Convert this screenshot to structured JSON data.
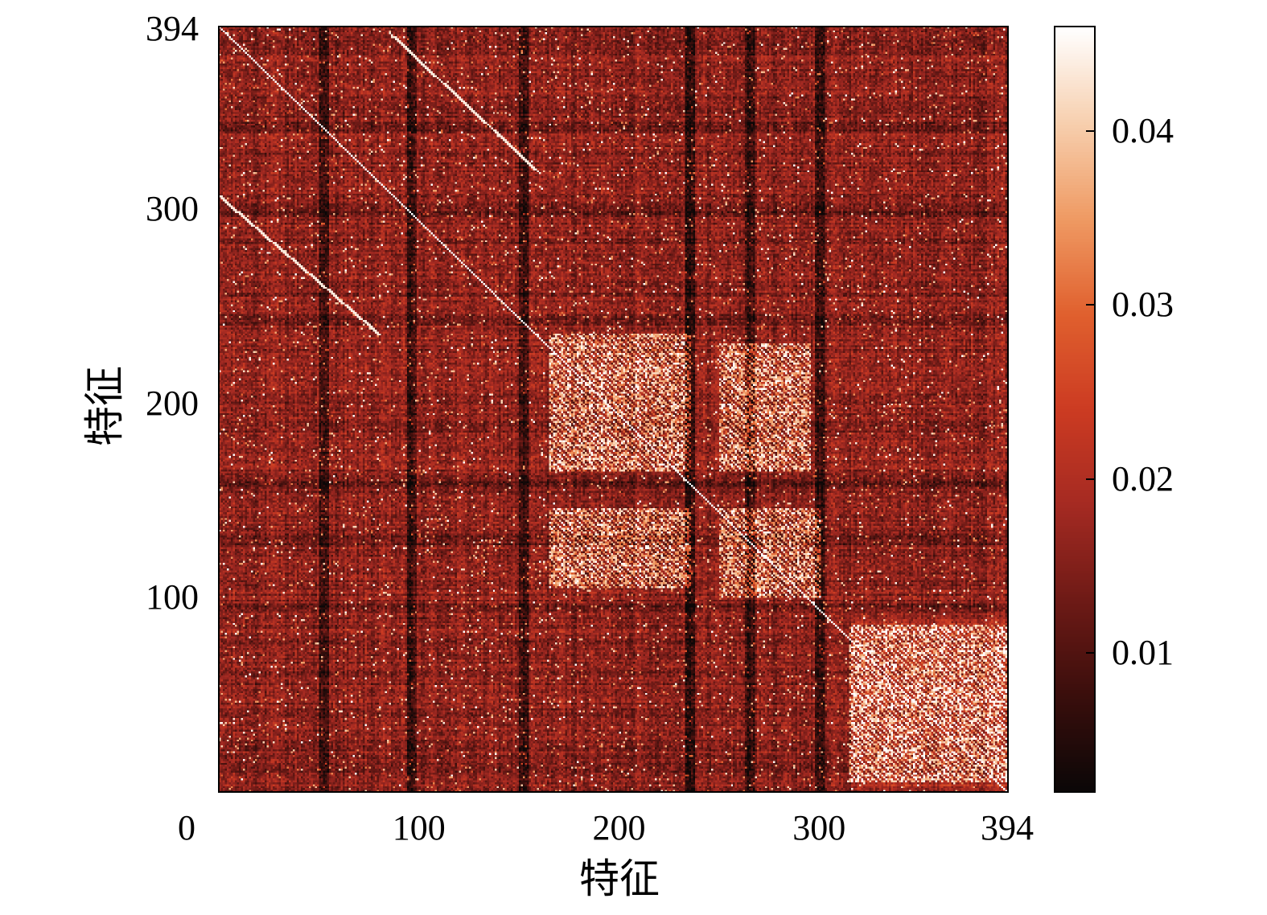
{
  "chart_data": {
    "type": "heatmap",
    "title": "",
    "xlabel": "特征",
    "ylabel": "特征",
    "n_features": 394,
    "xlim": [
      0,
      394
    ],
    "ylim": [
      0,
      394
    ],
    "x_ticks": [
      "0",
      "100",
      "200",
      "300",
      "394"
    ],
    "x_tick_values": [
      0,
      100,
      200,
      300,
      394
    ],
    "y_ticks": [
      "394",
      "300",
      "200",
      "100"
    ],
    "y_tick_values": [
      394,
      300,
      200,
      100
    ],
    "colorbar": {
      "range": [
        0.002,
        0.046
      ],
      "ticks": [
        "0.04",
        "0.03",
        "0.02",
        "0.01"
      ],
      "tick_values": [
        0.04,
        0.03,
        0.02,
        0.01
      ],
      "colormap": [
        "#0b0707",
        "#3a0e0c",
        "#6e1a16",
        "#a52a22",
        "#cc3b22",
        "#e0602e",
        "#ef9a63",
        "#f7cfae",
        "#ffffff"
      ]
    },
    "structure": {
      "main_diagonal": true,
      "off_diagonal_lines": [
        {
          "x_range": [
            0,
            80
          ],
          "y_range": [
            306,
            235
          ]
        },
        {
          "x_range": [
            85,
            160
          ],
          "y_range": [
            390,
            318
          ]
        }
      ],
      "bright_blocks": [
        {
          "x_range": [
            165,
            235
          ],
          "y_range": [
            235,
            165
          ]
        },
        {
          "x_range": [
            250,
            295
          ],
          "y_range": [
            230,
            165
          ]
        },
        {
          "x_range": [
            165,
            235
          ],
          "y_range": [
            145,
            105
          ]
        },
        {
          "x_range": [
            250,
            300
          ],
          "y_range": [
            145,
            100
          ]
        },
        {
          "x_range": [
            315,
            394
          ],
          "y_range": [
            85,
            5
          ]
        }
      ],
      "dark_bands": [
        52,
        96,
        152,
        235,
        300,
        265
      ]
    }
  }
}
